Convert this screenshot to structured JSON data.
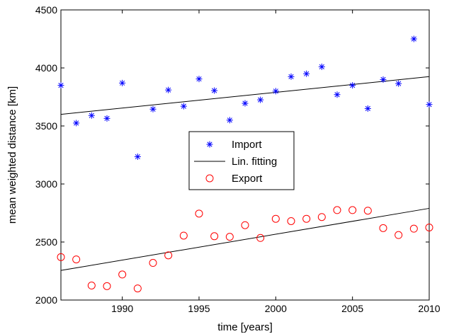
{
  "chart_data": {
    "type": "scatter",
    "title": "",
    "xlabel": "time [years]",
    "ylabel": "mean weighted distance [km]",
    "xlim": [
      1986,
      2010
    ],
    "ylim": [
      2000,
      4500
    ],
    "xticks": [
      1990,
      1995,
      2000,
      2005,
      2010
    ],
    "yticks": [
      2000,
      2500,
      3000,
      3500,
      4000,
      4500
    ],
    "grid": false,
    "legend_position": "center",
    "x": [
      1986,
      1987,
      1988,
      1989,
      1990,
      1991,
      1992,
      1993,
      1994,
      1995,
      1996,
      1997,
      1998,
      1999,
      2000,
      2001,
      2002,
      2003,
      2004,
      2005,
      2006,
      2007,
      2008,
      2009,
      2010
    ],
    "series": [
      {
        "name": "Import",
        "marker": "asterisk",
        "color": "#0000ff",
        "values": [
          3850,
          3525,
          3590,
          3565,
          3870,
          3235,
          3645,
          3810,
          3670,
          3905,
          3805,
          3550,
          3695,
          3725,
          3800,
          3925,
          3950,
          4010,
          3770,
          3850,
          3650,
          3900,
          3865,
          4250,
          3685
        ]
      },
      {
        "name": "Lin. fitting",
        "marker": "line",
        "color": "#000000",
        "segments": [
          {
            "x": [
              1986,
              2010
            ],
            "y": [
              3600,
              3925
            ]
          },
          {
            "x": [
              1986,
              2010
            ],
            "y": [
              2255,
              2790
            ]
          }
        ]
      },
      {
        "name": "Export",
        "marker": "circle",
        "color": "#ff0000",
        "values": [
          2370,
          2350,
          2125,
          2120,
          2220,
          2100,
          2320,
          2385,
          2555,
          2745,
          2550,
          2545,
          2645,
          2535,
          2700,
          2680,
          2700,
          2715,
          2775,
          2775,
          2770,
          2620,
          2560,
          2615,
          2625
        ]
      }
    ]
  }
}
